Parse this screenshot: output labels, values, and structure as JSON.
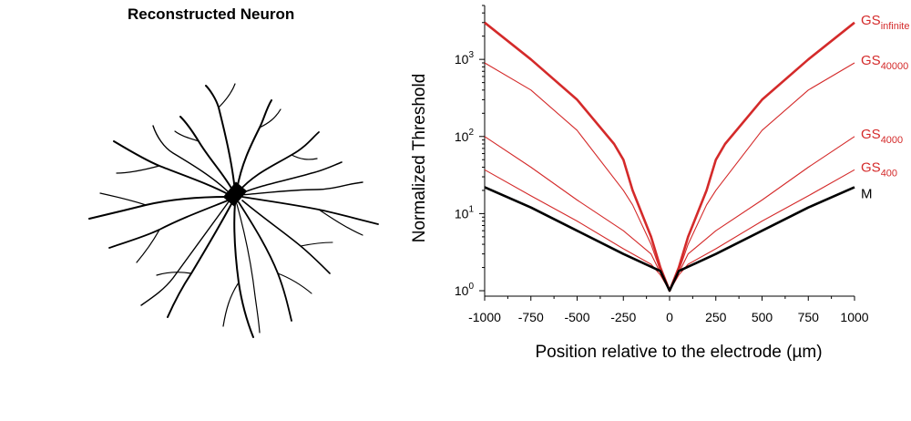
{
  "neuron_panel": {
    "title": "Reconstructed Neuron"
  },
  "chart_data": {
    "type": "line",
    "xlabel": "Position relative to the electrode (µm)",
    "ylabel": "Normalized Threshold",
    "xlim": [
      -1000,
      1000
    ],
    "ylim": [
      0.85,
      5000
    ],
    "yscale": "log",
    "x_ticks": [
      "-1000",
      "-750",
      "-500",
      "-250",
      "0",
      "250",
      "500",
      "750",
      "1000"
    ],
    "y_ticks": [
      {
        "base": "10",
        "exp": "0"
      },
      {
        "base": "10",
        "exp": "1"
      },
      {
        "base": "10",
        "exp": "2"
      },
      {
        "base": "10",
        "exp": "3"
      }
    ],
    "grid": false,
    "series": [
      {
        "name": "GS",
        "sub": "infinite",
        "color": "#d42a2a",
        "width": 2.6,
        "x": [
          -1000,
          -750,
          -500,
          -300,
          -250,
          -200,
          -100,
          -50,
          0,
          50,
          100,
          200,
          250,
          300,
          500,
          750,
          1000
        ],
        "y": [
          3000,
          1000,
          300,
          80,
          50,
          20,
          5,
          2,
          1,
          2,
          5,
          20,
          50,
          80,
          300,
          1000,
          3000
        ]
      },
      {
        "name": "GS",
        "sub": "40000",
        "color": "#d42a2a",
        "width": 1.1,
        "x": [
          -1000,
          -750,
          -500,
          -250,
          -200,
          -100,
          -50,
          0,
          50,
          100,
          200,
          250,
          500,
          750,
          1000
        ],
        "y": [
          900,
          400,
          120,
          20,
          13,
          4,
          1.8,
          1,
          1.8,
          4,
          13,
          20,
          120,
          400,
          900
        ]
      },
      {
        "name": "GS",
        "sub": "4000",
        "color": "#d42a2a",
        "width": 1.1,
        "x": [
          -1000,
          -750,
          -500,
          -250,
          -100,
          -50,
          0,
          50,
          100,
          250,
          500,
          750,
          1000
        ],
        "y": [
          100,
          40,
          15,
          6,
          3,
          1.7,
          1,
          1.7,
          3,
          6,
          15,
          40,
          100
        ]
      },
      {
        "name": "GS",
        "sub": "400",
        "color": "#d42a2a",
        "width": 1.1,
        "x": [
          -1000,
          -750,
          -500,
          -250,
          -100,
          -50,
          0,
          50,
          100,
          250,
          500,
          750,
          1000
        ],
        "y": [
          37,
          17,
          8,
          3.5,
          2.2,
          1.6,
          1,
          1.6,
          2.2,
          3.5,
          8,
          17,
          37
        ]
      },
      {
        "name": "M",
        "sub": "",
        "color": "#000000",
        "width": 2.6,
        "x": [
          -1000,
          -750,
          -500,
          -250,
          -50,
          0,
          50,
          250,
          500,
          750,
          1000
        ],
        "y": [
          22,
          12,
          6,
          3,
          1.8,
          1,
          1.8,
          3,
          6,
          12,
          22
        ]
      }
    ]
  }
}
